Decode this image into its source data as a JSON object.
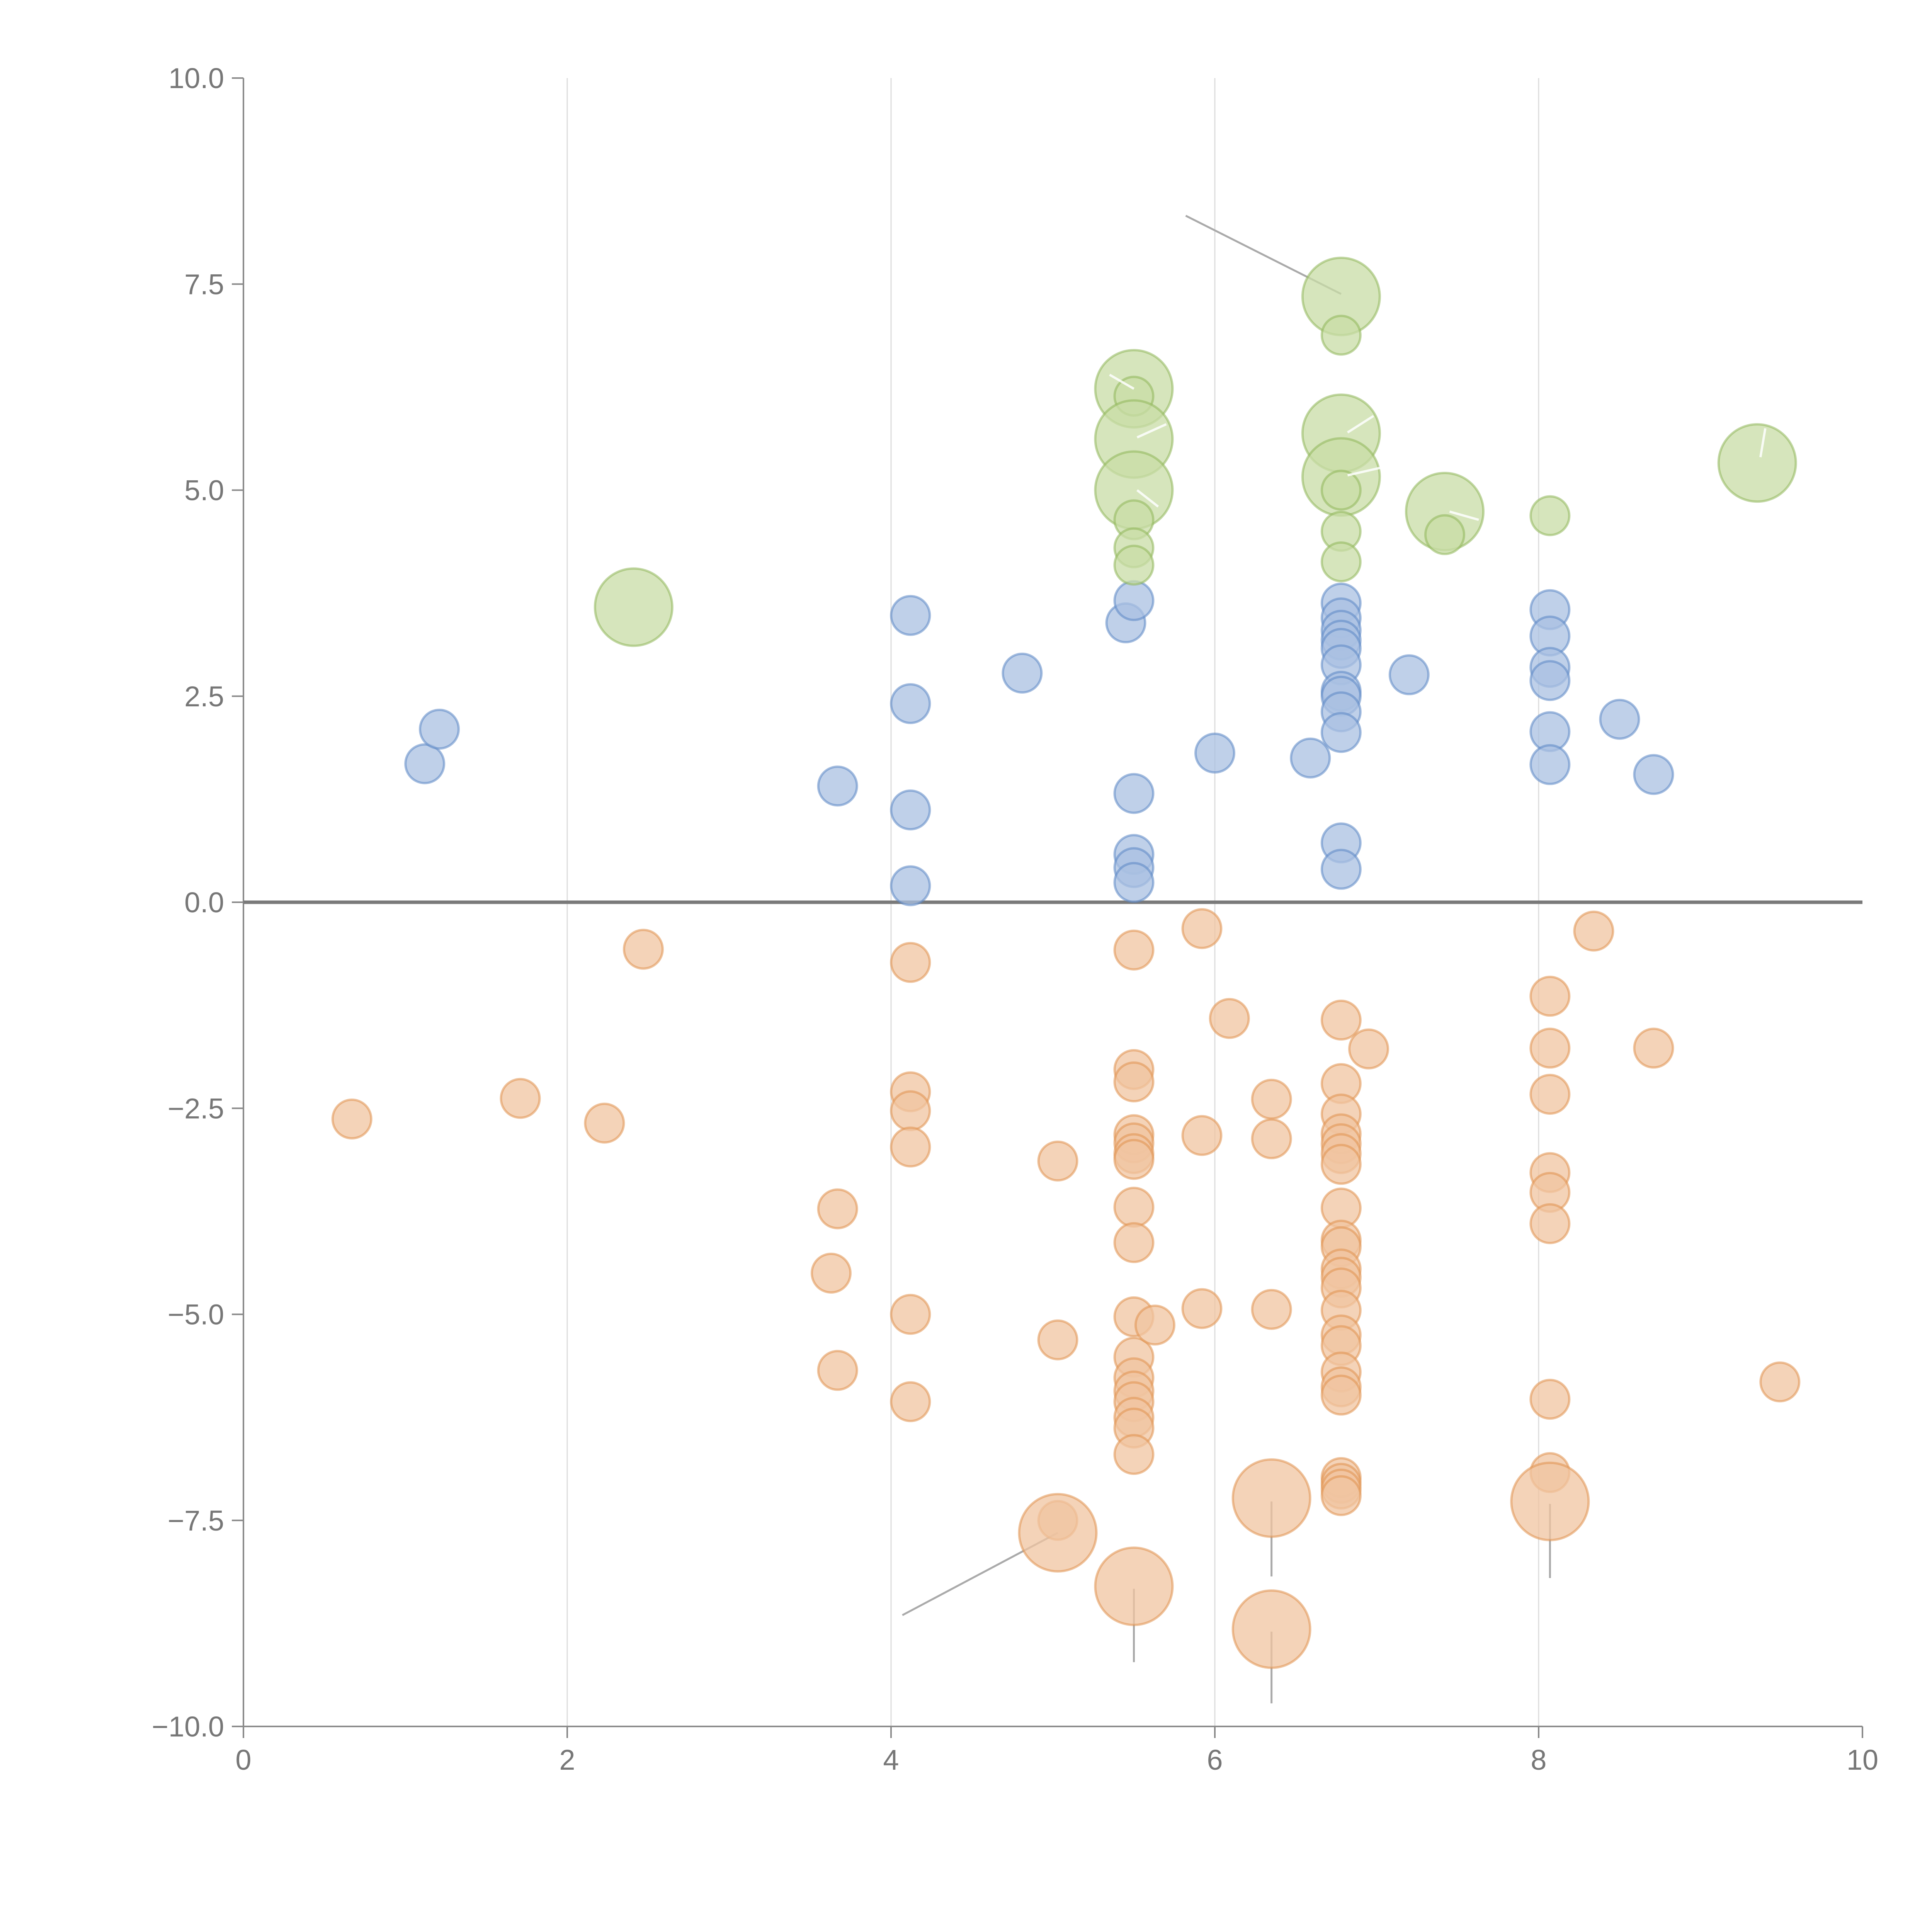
{
  "chart_data": {
    "type": "scatter",
    "title": "",
    "xlabel": "",
    "ylabel": "",
    "xlim": [
      0,
      10
    ],
    "ylim": [
      -10,
      10
    ],
    "grid": "vertical",
    "zero_line": 0,
    "x_ticks": [
      0,
      2,
      4,
      6,
      8,
      10
    ],
    "x_tick_labels": [
      "0",
      "2",
      "4",
      "6",
      "8",
      "10"
    ],
    "y_ticks": [
      10,
      7.5,
      5,
      2.5,
      0,
      -2.5,
      -5,
      -7.5,
      -10
    ],
    "y_tick_labels": [
      "10.0",
      "7.5",
      "5.0",
      "2.5",
      "0.0",
      "−2.5",
      "−5.0",
      "−7.5",
      "−10.0"
    ],
    "series": [
      {
        "name": "blue",
        "color": "#5b86c4",
        "fill": "#a9c0e2",
        "points": [
          {
            "x": 1.12,
            "y": 1.68,
            "size": 1
          },
          {
            "x": 1.21,
            "y": 2.1,
            "size": 1
          },
          {
            "x": 3.67,
            "y": 1.41,
            "size": 1
          },
          {
            "x": 4.12,
            "y": 3.48,
            "size": 1
          },
          {
            "x": 4.12,
            "y": 2.41,
            "size": 1
          },
          {
            "x": 4.12,
            "y": 1.12,
            "size": 1
          },
          {
            "x": 4.12,
            "y": 0.2,
            "size": 1
          },
          {
            "x": 4.81,
            "y": 2.78,
            "size": 1
          },
          {
            "x": 5.45,
            "y": 3.39,
            "size": 1
          },
          {
            "x": 5.5,
            "y": 3.66,
            "size": 1
          },
          {
            "x": 5.5,
            "y": 1.32,
            "size": 1
          },
          {
            "x": 5.5,
            "y": 0.58,
            "size": 1
          },
          {
            "x": 5.5,
            "y": 0.42,
            "size": 1
          },
          {
            "x": 5.5,
            "y": 0.24,
            "size": 1
          },
          {
            "x": 6.0,
            "y": 1.81,
            "size": 1
          },
          {
            "x": 6.59,
            "y": 1.75,
            "size": 1
          },
          {
            "x": 6.78,
            "y": 3.63,
            "size": 1
          },
          {
            "x": 6.78,
            "y": 3.45,
            "size": 1
          },
          {
            "x": 6.78,
            "y": 3.3,
            "size": 1
          },
          {
            "x": 6.78,
            "y": 3.18,
            "size": 1
          },
          {
            "x": 6.78,
            "y": 3.08,
            "size": 1
          },
          {
            "x": 6.78,
            "y": 2.88,
            "size": 1
          },
          {
            "x": 6.78,
            "y": 2.56,
            "size": 1
          },
          {
            "x": 6.78,
            "y": 2.5,
            "size": 1
          },
          {
            "x": 6.78,
            "y": 2.31,
            "size": 1
          },
          {
            "x": 6.78,
            "y": 2.06,
            "size": 1
          },
          {
            "x": 6.78,
            "y": 0.72,
            "size": 1
          },
          {
            "x": 6.78,
            "y": 0.4,
            "size": 1
          },
          {
            "x": 7.2,
            "y": 2.76,
            "size": 1
          },
          {
            "x": 8.07,
            "y": 3.55,
            "size": 1
          },
          {
            "x": 8.07,
            "y": 3.23,
            "size": 1
          },
          {
            "x": 8.07,
            "y": 2.85,
            "size": 1
          },
          {
            "x": 8.07,
            "y": 2.69,
            "size": 1
          },
          {
            "x": 8.07,
            "y": 2.07,
            "size": 1
          },
          {
            "x": 8.07,
            "y": 1.67,
            "size": 1
          },
          {
            "x": 8.5,
            "y": 2.22,
            "size": 1
          },
          {
            "x": 8.71,
            "y": 1.55,
            "size": 1
          }
        ]
      },
      {
        "name": "green",
        "color": "#8fb65a",
        "fill": "#c8dca6",
        "points": [
          {
            "x": 2.41,
            "y": 3.58,
            "size": 2.5
          },
          {
            "x": 5.5,
            "y": 6.23,
            "size": 2.5
          },
          {
            "x": 5.5,
            "y": 6.14,
            "size": 1
          },
          {
            "x": 5.5,
            "y": 5.62,
            "size": 2.5
          },
          {
            "x": 5.5,
            "y": 5.0,
            "size": 2.5
          },
          {
            "x": 5.5,
            "y": 4.64,
            "size": 1
          },
          {
            "x": 5.5,
            "y": 4.3,
            "size": 1
          },
          {
            "x": 5.5,
            "y": 4.09,
            "size": 1
          },
          {
            "x": 6.78,
            "y": 7.35,
            "size": 2.5
          },
          {
            "x": 6.78,
            "y": 6.88,
            "size": 1
          },
          {
            "x": 6.78,
            "y": 5.69,
            "size": 2.5
          },
          {
            "x": 6.78,
            "y": 5.16,
            "size": 2.5
          },
          {
            "x": 6.78,
            "y": 5.0,
            "size": 1
          },
          {
            "x": 6.78,
            "y": 4.5,
            "size": 1
          },
          {
            "x": 6.78,
            "y": 4.13,
            "size": 1
          },
          {
            "x": 7.42,
            "y": 4.74,
            "size": 2.5
          },
          {
            "x": 7.42,
            "y": 4.46,
            "size": 1
          },
          {
            "x": 8.07,
            "y": 4.69,
            "size": 1
          },
          {
            "x": 9.35,
            "y": 5.33,
            "size": 2.5
          }
        ]
      },
      {
        "name": "orange",
        "color": "#e0924e",
        "fill": "#f0c4a0",
        "points": [
          {
            "x": 0.67,
            "y": -2.63,
            "size": 1
          },
          {
            "x": 1.71,
            "y": -2.38,
            "size": 1
          },
          {
            "x": 2.23,
            "y": -2.68,
            "size": 1
          },
          {
            "x": 2.47,
            "y": -0.57,
            "size": 1
          },
          {
            "x": 3.63,
            "y": -4.5,
            "size": 1
          },
          {
            "x": 3.67,
            "y": -3.72,
            "size": 1
          },
          {
            "x": 3.67,
            "y": -5.68,
            "size": 1
          },
          {
            "x": 4.12,
            "y": -0.73,
            "size": 1
          },
          {
            "x": 4.12,
            "y": -2.3,
            "size": 1
          },
          {
            "x": 4.12,
            "y": -2.53,
            "size": 1
          },
          {
            "x": 4.12,
            "y": -2.97,
            "size": 1
          },
          {
            "x": 4.12,
            "y": -5.0,
            "size": 1
          },
          {
            "x": 4.12,
            "y": -6.06,
            "size": 1
          },
          {
            "x": 5.03,
            "y": -3.14,
            "size": 1
          },
          {
            "x": 5.03,
            "y": -5.31,
            "size": 1
          },
          {
            "x": 5.03,
            "y": -7.5,
            "size": 1
          },
          {
            "x": 5.03,
            "y": -7.65,
            "size": 2.5
          },
          {
            "x": 5.5,
            "y": -0.58,
            "size": 1
          },
          {
            "x": 5.5,
            "y": -2.03,
            "size": 1
          },
          {
            "x": 5.5,
            "y": -2.18,
            "size": 1
          },
          {
            "x": 5.5,
            "y": -2.82,
            "size": 1
          },
          {
            "x": 5.5,
            "y": -2.92,
            "size": 1
          },
          {
            "x": 5.5,
            "y": -3.05,
            "size": 1
          },
          {
            "x": 5.5,
            "y": -3.12,
            "size": 1
          },
          {
            "x": 5.5,
            "y": -3.7,
            "size": 1
          },
          {
            "x": 5.5,
            "y": -4.13,
            "size": 1
          },
          {
            "x": 5.5,
            "y": -5.03,
            "size": 1
          },
          {
            "x": 5.5,
            "y": -5.52,
            "size": 1
          },
          {
            "x": 5.5,
            "y": -5.77,
            "size": 1
          },
          {
            "x": 5.5,
            "y": -5.93,
            "size": 1
          },
          {
            "x": 5.5,
            "y": -6.06,
            "size": 1
          },
          {
            "x": 5.5,
            "y": -6.25,
            "size": 1
          },
          {
            "x": 5.5,
            "y": -6.38,
            "size": 1
          },
          {
            "x": 5.5,
            "y": -6.7,
            "size": 1
          },
          {
            "x": 5.5,
            "y": -8.3,
            "size": 2.5
          },
          {
            "x": 5.63,
            "y": -5.13,
            "size": 1
          },
          {
            "x": 5.92,
            "y": -0.32,
            "size": 1
          },
          {
            "x": 5.92,
            "y": -2.83,
            "size": 1
          },
          {
            "x": 5.92,
            "y": -4.93,
            "size": 1
          },
          {
            "x": 6.09,
            "y": -1.41,
            "size": 1
          },
          {
            "x": 6.35,
            "y": -2.39,
            "size": 1
          },
          {
            "x": 6.35,
            "y": -2.87,
            "size": 1
          },
          {
            "x": 6.35,
            "y": -4.94,
            "size": 1
          },
          {
            "x": 6.35,
            "y": -7.23,
            "size": 2.5
          },
          {
            "x": 6.35,
            "y": -8.82,
            "size": 2.5
          },
          {
            "x": 6.78,
            "y": -1.43,
            "size": 1
          },
          {
            "x": 6.78,
            "y": -2.2,
            "size": 1
          },
          {
            "x": 6.78,
            "y": -2.57,
            "size": 1
          },
          {
            "x": 6.78,
            "y": -2.81,
            "size": 1
          },
          {
            "x": 6.78,
            "y": -2.93,
            "size": 1
          },
          {
            "x": 6.78,
            "y": -3.05,
            "size": 1
          },
          {
            "x": 6.78,
            "y": -3.18,
            "size": 1
          },
          {
            "x": 6.78,
            "y": -3.71,
            "size": 1
          },
          {
            "x": 6.78,
            "y": -4.1,
            "size": 1
          },
          {
            "x": 6.78,
            "y": -4.18,
            "size": 1
          },
          {
            "x": 6.78,
            "y": -4.45,
            "size": 1
          },
          {
            "x": 6.78,
            "y": -4.55,
            "size": 1
          },
          {
            "x": 6.78,
            "y": -4.68,
            "size": 1
          },
          {
            "x": 6.78,
            "y": -4.95,
            "size": 1
          },
          {
            "x": 6.78,
            "y": -5.25,
            "size": 1
          },
          {
            "x": 6.78,
            "y": -5.38,
            "size": 1
          },
          {
            "x": 6.78,
            "y": -5.7,
            "size": 1
          },
          {
            "x": 6.78,
            "y": -5.88,
            "size": 1
          },
          {
            "x": 6.78,
            "y": -5.98,
            "size": 1
          },
          {
            "x": 6.78,
            "y": -6.98,
            "size": 1
          },
          {
            "x": 6.78,
            "y": -7.05,
            "size": 1
          },
          {
            "x": 6.78,
            "y": -7.12,
            "size": 1
          },
          {
            "x": 6.78,
            "y": -7.2,
            "size": 1
          },
          {
            "x": 6.95,
            "y": -1.78,
            "size": 1
          },
          {
            "x": 8.07,
            "y": -1.14,
            "size": 1
          },
          {
            "x": 8.07,
            "y": -1.77,
            "size": 1
          },
          {
            "x": 8.07,
            "y": -2.33,
            "size": 1
          },
          {
            "x": 8.07,
            "y": -3.28,
            "size": 1
          },
          {
            "x": 8.07,
            "y": -3.52,
            "size": 1
          },
          {
            "x": 8.07,
            "y": -3.9,
            "size": 1
          },
          {
            "x": 8.07,
            "y": -6.03,
            "size": 1
          },
          {
            "x": 8.07,
            "y": -6.92,
            "size": 1
          },
          {
            "x": 8.07,
            "y": -7.27,
            "size": 2.5
          },
          {
            "x": 8.34,
            "y": -0.35,
            "size": 1
          },
          {
            "x": 8.71,
            "y": -1.77,
            "size": 1
          },
          {
            "x": 9.49,
            "y": -5.82,
            "size": 1
          }
        ]
      }
    ],
    "leaders": [
      {
        "from": [
          5.82,
          8.33
        ],
        "to": [
          6.78,
          7.38
        ],
        "color": "#aaaaaa"
      },
      {
        "from": [
          5.03,
          -7.65
        ],
        "to": [
          4.07,
          -8.65
        ],
        "color": "#aaaaaa"
      },
      {
        "from": [
          5.5,
          -8.33
        ],
        "to": [
          5.5,
          -9.22
        ],
        "color": "#aaaaaa"
      },
      {
        "from": [
          6.35,
          -7.27
        ],
        "to": [
          6.35,
          -8.18
        ],
        "color": "#aaaaaa"
      },
      {
        "from": [
          6.35,
          -8.85
        ],
        "to": [
          6.35,
          -9.72
        ],
        "color": "#aaaaaa"
      },
      {
        "from": [
          8.07,
          -7.3
        ],
        "to": [
          8.07,
          -8.2
        ],
        "color": "#aaaaaa"
      },
      {
        "from": [
          5.5,
          6.23
        ],
        "to": [
          5.35,
          6.4
        ],
        "color": "#ffffff"
      },
      {
        "from": [
          5.52,
          5.64
        ],
        "to": [
          5.7,
          5.8
        ],
        "color": "#ffffff"
      },
      {
        "from": [
          5.52,
          5.0
        ],
        "to": [
          5.65,
          4.8
        ],
        "color": "#ffffff"
      },
      {
        "from": [
          6.82,
          5.7
        ],
        "to": [
          6.98,
          5.9
        ],
        "color": "#ffffff"
      },
      {
        "from": [
          6.82,
          5.18
        ],
        "to": [
          7.02,
          5.27
        ],
        "color": "#ffffff"
      },
      {
        "from": [
          7.45,
          4.74
        ],
        "to": [
          7.63,
          4.64
        ],
        "color": "#ffffff"
      },
      {
        "from": [
          9.37,
          5.4
        ],
        "to": [
          9.4,
          5.75
        ],
        "color": "#ffffff"
      }
    ]
  }
}
